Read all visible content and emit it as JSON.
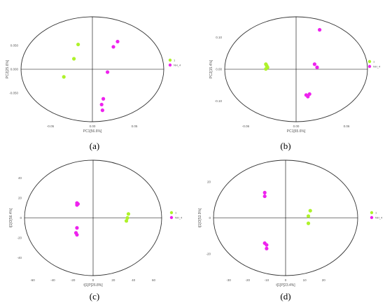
{
  "colors": {
    "group1": "#aef22a",
    "group2": "#ee22ee",
    "axis": "#000000",
    "ellipse": "#333333"
  },
  "panel_labels": [
    "(a)",
    "(b)",
    "(c)",
    "(d)"
  ],
  "chart_data": [
    {
      "type": "scatter",
      "title": "",
      "xlabel": "PC1[56.6%]",
      "ylabel": "PC2[25.6%]",
      "xticks": [
        "-0.05",
        "0.00",
        "0.05"
      ],
      "yticks": [
        "0.050",
        "0.000",
        "-0.050"
      ],
      "legend": [
        "1",
        "NH_4"
      ],
      "legend_position": "right",
      "series": [
        {
          "name": "1",
          "points": [
            [
              -0.034,
              -0.016
            ],
            [
              -0.022,
              0.022
            ],
            [
              -0.017,
              0.052
            ]
          ]
        },
        {
          "name": "NH_4",
          "points": [
            [
              0.012,
              -0.086
            ],
            [
              0.011,
              -0.074
            ],
            [
              0.013,
              -0.062
            ],
            [
              0.018,
              -0.006
            ],
            [
              0.025,
              0.047
            ],
            [
              0.03,
              0.058
            ]
          ]
        }
      ]
    },
    {
      "type": "scatter",
      "title": "",
      "xlabel": "PC1[65.6%]",
      "ylabel": "PC2[15.4%]",
      "xticks": [
        "-0.06",
        "0.00",
        "0.06"
      ],
      "yticks": [
        "0.10",
        "0.00",
        "-0.10"
      ],
      "legend": [
        "1",
        "NH_4"
      ],
      "legend_position": "right",
      "series": [
        {
          "name": "1",
          "points": [
            [
              -0.036,
              0.016
            ],
            [
              -0.035,
              0.011
            ],
            [
              -0.034,
              0.006
            ],
            [
              -0.036,
              0.001
            ]
          ]
        },
        {
          "name": "NH_4",
          "points": [
            [
              0.012,
              -0.081
            ],
            [
              0.014,
              -0.086
            ],
            [
              0.016,
              -0.078
            ],
            [
              0.022,
              0.016
            ],
            [
              0.025,
              0.006
            ],
            [
              0.028,
              0.124
            ]
          ]
        }
      ]
    },
    {
      "type": "scatter",
      "title": "",
      "xlabel": "t[1]P[26.8%]",
      "ylabel": "t[1]O[56.4%]",
      "xticks": [
        "-60",
        "-40",
        "-20",
        "0",
        "20",
        "40",
        "60"
      ],
      "yticks": [
        "40",
        "20",
        "0",
        "-20",
        "-40"
      ],
      "legend": [
        "1",
        "NH_4"
      ],
      "legend_position": "right",
      "series": [
        {
          "name": "1",
          "points": [
            [
              35,
              4
            ],
            [
              34,
              0
            ],
            [
              33,
              -3
            ]
          ]
        },
        {
          "name": "NH_4",
          "points": [
            [
              -16,
              15
            ],
            [
              -16,
              13
            ],
            [
              -15,
              14
            ],
            [
              -16,
              -10
            ],
            [
              -17,
              -15
            ],
            [
              -16,
              -17
            ]
          ]
        }
      ]
    },
    {
      "type": "scatter",
      "title": "",
      "xlabel": "t[1]P[23.4%]",
      "ylabel": "t[1]O[53.9%]",
      "xticks": [
        "-30",
        "-20",
        "-10",
        "0",
        "10",
        "20"
      ],
      "yticks": [
        "20",
        "0",
        "-20"
      ],
      "legend": [
        "1",
        "NH_4"
      ],
      "legend_position": "right",
      "series": [
        {
          "name": "1",
          "points": [
            [
              13,
              4
            ],
            [
              12,
              1
            ],
            [
              12,
              -3
            ]
          ]
        },
        {
          "name": "NH_4",
          "points": [
            [
              -11,
              14
            ],
            [
              -11,
              12
            ],
            [
              -11,
              -14
            ],
            [
              -10,
              -15
            ],
            [
              -10,
              -17
            ]
          ]
        }
      ]
    }
  ]
}
